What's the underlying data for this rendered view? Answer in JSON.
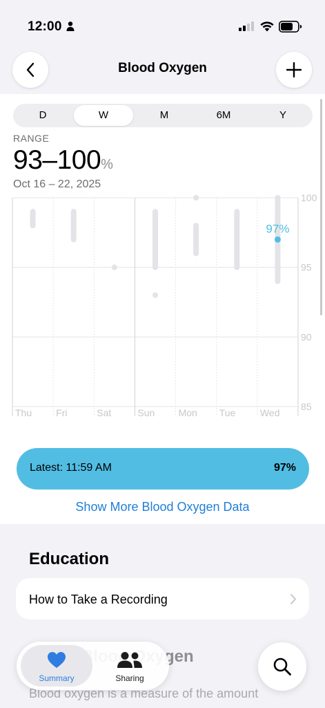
{
  "status_bar": {
    "time": "12:00",
    "icons": [
      "person-icon",
      "signal-icon",
      "wifi-icon",
      "battery-icon"
    ]
  },
  "nav": {
    "title": "Blood Oxygen",
    "back_icon": "chevron-left-icon",
    "add_icon": "plus-icon"
  },
  "segments": {
    "items": [
      "D",
      "W",
      "M",
      "6M",
      "Y"
    ],
    "selected": "W"
  },
  "summary": {
    "range_label": "RANGE",
    "range_value": "93–100",
    "range_unit": "%",
    "date_range": "Oct 16 – 22, 2025"
  },
  "chart_data": {
    "type": "range_bar",
    "categories": [
      "Thu",
      "Fri",
      "Sat",
      "Sun",
      "Mon",
      "Tue",
      "Wed"
    ],
    "y_ticks": [
      "100",
      "95",
      "90",
      "85"
    ],
    "ylim": [
      85,
      100
    ],
    "y_axis_position": "right",
    "grid": true,
    "series": [
      {
        "ranges": [
          [
            [
              98,
              99
            ]
          ],
          [
            [
              97,
              99
            ]
          ],
          [
            [
              95,
              95
            ]
          ],
          [
            [
              95,
              99
            ],
            [
              93,
              93
            ]
          ],
          [
            [
              100,
              100
            ],
            [
              96,
              98
            ]
          ],
          [
            [
              95,
              99
            ]
          ],
          [
            [
              94,
              100
            ]
          ]
        ]
      }
    ],
    "highlight": {
      "category": "Wed",
      "value": 97,
      "label": "97%"
    },
    "colors": {
      "bars": "#e3e3e8",
      "highlight": "#52bde3",
      "grid": "#e5e5ea",
      "labels": "#c7c7cc"
    }
  },
  "latest": {
    "label": "Latest: 11:59 AM",
    "value": "97%"
  },
  "more_link": "Show More Blood Oxygen Data",
  "education": {
    "title": "Education",
    "row_label": "How to Take a Recording"
  },
  "about": {
    "heading": "About Blood Oxygen",
    "body": "Blood oxygen is a measure of the amount"
  },
  "tabs": {
    "summary": "Summary",
    "sharing": "Sharing"
  },
  "colors": {
    "accent": "#1f7fd8",
    "pill": "#52bde3",
    "background": "#f2f2f7"
  }
}
